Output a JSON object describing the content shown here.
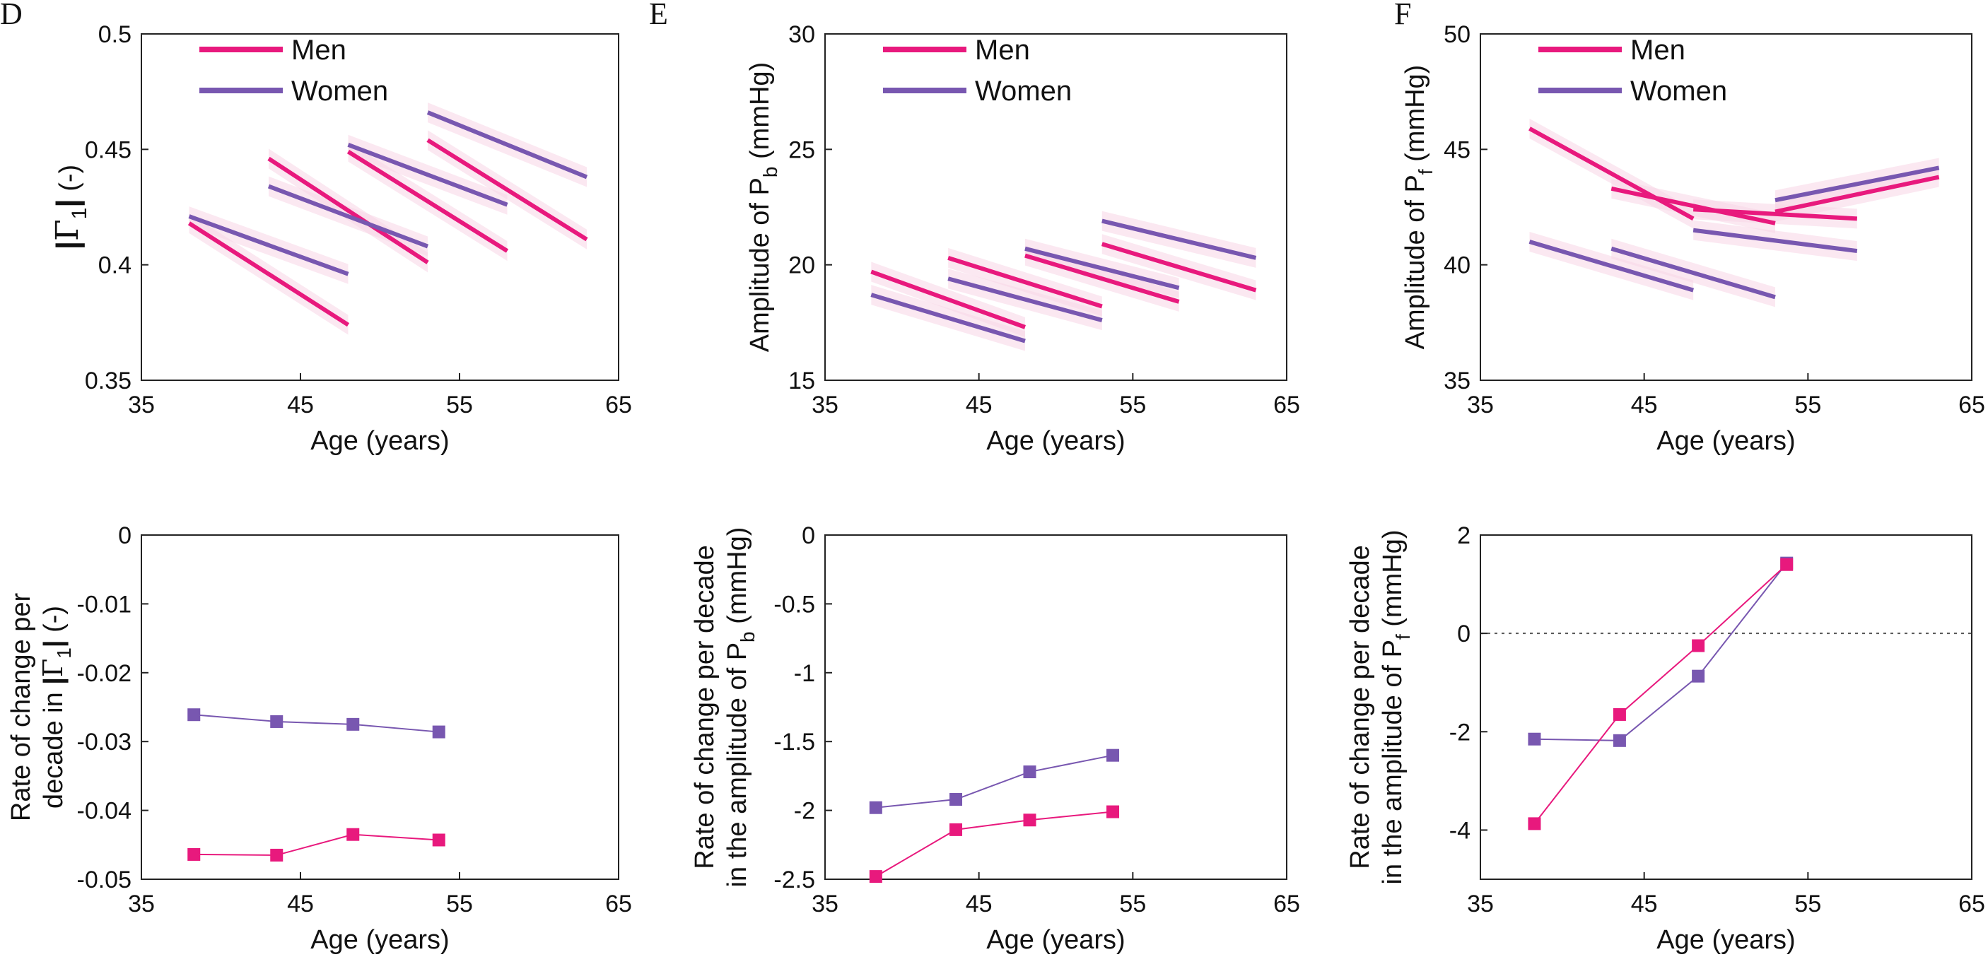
{
  "colors": {
    "men": "#e8197d",
    "women": "#7857b0",
    "band": "#f7d6e6",
    "axis": "#222222",
    "zero": "#555555"
  },
  "chart_data": [
    {
      "id": "D-top",
      "letter": "D",
      "type": "line",
      "xlabel": "Age (years)",
      "ylabel": "",
      "xlim": [
        35,
        65
      ],
      "ylim": [
        0.35,
        0.5
      ],
      "xticks": [
        35,
        45,
        55,
        65
      ],
      "xtick_labels": [
        "35",
        "45",
        "55",
        "65"
      ],
      "yticks": [
        0.35,
        0.4,
        0.45,
        0.5
      ],
      "ytick_labels": [
        "0.35",
        "0.4",
        "0.45",
        "0.5"
      ],
      "legend": [
        "Men",
        "Women"
      ],
      "legend_placement": "top-left",
      "series": [
        {
          "name": "Men",
          "color": "men",
          "segments": [
            [
              [
                38,
                0.418
              ],
              [
                48,
                0.374
              ]
            ],
            [
              [
                43,
                0.446
              ],
              [
                53,
                0.401
              ]
            ],
            [
              [
                48,
                0.449
              ],
              [
                58,
                0.406
              ]
            ],
            [
              [
                53,
                0.454
              ],
              [
                63,
                0.411
              ]
            ]
          ]
        },
        {
          "name": "Women",
          "color": "women",
          "segments": [
            [
              [
                38,
                0.421
              ],
              [
                48,
                0.396
              ]
            ],
            [
              [
                43,
                0.434
              ],
              [
                53,
                0.408
              ]
            ],
            [
              [
                48,
                0.452
              ],
              [
                58,
                0.426
              ]
            ],
            [
              [
                53,
                0.466
              ],
              [
                63,
                0.438
              ]
            ]
          ]
        }
      ]
    },
    {
      "id": "E-top",
      "letter": "E",
      "type": "line",
      "xlabel": "Age (years)",
      "ylabel": "Amplitude of P",
      "ylabel_sub": "b",
      "ylabel_suffix": " (mmHg)",
      "xlim": [
        35,
        65
      ],
      "ylim": [
        15,
        30
      ],
      "xticks": [
        35,
        45,
        55,
        65
      ],
      "xtick_labels": [
        "35",
        "45",
        "55",
        "65"
      ],
      "yticks": [
        15,
        20,
        25,
        30
      ],
      "ytick_labels": [
        "15",
        "20",
        "25",
        "30"
      ],
      "legend": [
        "Men",
        "Women"
      ],
      "legend_placement": "top-left",
      "series": [
        {
          "name": "Men",
          "color": "men",
          "segments": [
            [
              [
                38,
                19.7
              ],
              [
                48,
                17.3
              ]
            ],
            [
              [
                43,
                20.3
              ],
              [
                53,
                18.2
              ]
            ],
            [
              [
                48,
                20.4
              ],
              [
                58,
                18.4
              ]
            ],
            [
              [
                53,
                20.9
              ],
              [
                63,
                18.9
              ]
            ]
          ]
        },
        {
          "name": "Women",
          "color": "women",
          "segments": [
            [
              [
                38,
                18.7
              ],
              [
                48,
                16.7
              ]
            ],
            [
              [
                43,
                19.4
              ],
              [
                53,
                17.6
              ]
            ],
            [
              [
                48,
                20.7
              ],
              [
                58,
                19.0
              ]
            ],
            [
              [
                53,
                21.9
              ],
              [
                63,
                20.3
              ]
            ]
          ]
        }
      ]
    },
    {
      "id": "F-top",
      "letter": "F",
      "type": "line",
      "xlabel": "Age (years)",
      "ylabel": "Amplitude of P",
      "ylabel_sub": "f",
      "ylabel_suffix": " (mmHg)",
      "xlim": [
        35,
        65
      ],
      "ylim": [
        35,
        50
      ],
      "xticks": [
        35,
        45,
        55,
        65
      ],
      "xtick_labels": [
        "35",
        "45",
        "55",
        "65"
      ],
      "yticks": [
        35,
        40,
        45,
        50
      ],
      "ytick_labels": [
        "35",
        "40",
        "45",
        "50"
      ],
      "legend": [
        "Men",
        "Women"
      ],
      "legend_placement": "top-left",
      "series": [
        {
          "name": "Men",
          "color": "men",
          "segments": [
            [
              [
                38,
                45.9
              ],
              [
                48,
                42.0
              ]
            ],
            [
              [
                43,
                43.3
              ],
              [
                53,
                41.8
              ]
            ],
            [
              [
                48,
                42.4
              ],
              [
                58,
                42.0
              ]
            ],
            [
              [
                53,
                42.3
              ],
              [
                63,
                43.8
              ]
            ]
          ]
        },
        {
          "name": "Women",
          "color": "women",
          "segments": [
            [
              [
                38,
                41.0
              ],
              [
                48,
                38.9
              ]
            ],
            [
              [
                43,
                40.7
              ],
              [
                53,
                38.6
              ]
            ],
            [
              [
                48,
                41.5
              ],
              [
                58,
                40.6
              ]
            ],
            [
              [
                53,
                42.8
              ],
              [
                63,
                44.2
              ]
            ]
          ]
        }
      ]
    },
    {
      "id": "D-bottom",
      "type": "line",
      "xlabel": "Age (years)",
      "ylabel_line1": "Rate of change per",
      "ylabel_line2": "decade in ",
      "xlim": [
        35,
        65
      ],
      "ylim": [
        -0.05,
        0
      ],
      "xticks": [
        35,
        45,
        55,
        65
      ],
      "xtick_labels": [
        "35",
        "45",
        "55",
        "65"
      ],
      "yticks": [
        -0.05,
        -0.04,
        -0.03,
        -0.02,
        -0.01,
        0
      ],
      "ytick_labels": [
        "-0.05",
        "-0.04",
        "-0.03",
        "-0.02",
        "-0.01",
        "0"
      ],
      "zero_line": true,
      "series": [
        {
          "name": "Women",
          "color": "women",
          "x": [
            38.3,
            43.5,
            48.3,
            53.7
          ],
          "y": [
            -0.0261,
            -0.0271,
            -0.0275,
            -0.0286
          ]
        },
        {
          "name": "Men",
          "color": "men",
          "x": [
            38.3,
            43.5,
            48.3,
            53.7
          ],
          "y": [
            -0.0464,
            -0.0465,
            -0.0435,
            -0.0443
          ]
        }
      ]
    },
    {
      "id": "E-bottom",
      "type": "line",
      "xlabel": "Age (years)",
      "ylabel_line1": "Rate of change per decade",
      "ylabel_line2": "in the amplitude of P",
      "ylabel_sub": "b",
      "ylabel_suffix": " (mmHg)",
      "xlim": [
        35,
        65
      ],
      "ylim": [
        -2.5,
        0
      ],
      "xticks": [
        35,
        45,
        55,
        65
      ],
      "xtick_labels": [
        "35",
        "45",
        "55",
        "65"
      ],
      "yticks": [
        -2.5,
        -2,
        -1.5,
        -1,
        -0.5,
        0
      ],
      "ytick_labels": [
        "-2.5",
        "-2",
        "-1.5",
        "-1",
        "-0.5",
        "0"
      ],
      "zero_line": true,
      "series": [
        {
          "name": "Women",
          "color": "women",
          "x": [
            38.3,
            43.5,
            48.3,
            53.7
          ],
          "y": [
            -1.98,
            -1.92,
            -1.72,
            -1.6
          ]
        },
        {
          "name": "Men",
          "color": "men",
          "x": [
            38.3,
            43.5,
            48.3,
            53.7
          ],
          "y": [
            -2.48,
            -2.14,
            -2.07,
            -2.01
          ]
        }
      ]
    },
    {
      "id": "F-bottom",
      "type": "line",
      "xlabel": "Age (years)",
      "ylabel_line1": "Rate of change per decade",
      "ylabel_line2": "in the amplitude of P",
      "ylabel_sub": "f",
      "ylabel_suffix": " (mmHg)",
      "xlim": [
        35,
        65
      ],
      "ylim": [
        -5,
        2
      ],
      "xticks": [
        35,
        45,
        55,
        65
      ],
      "xtick_labels": [
        "35",
        "45",
        "55",
        "65"
      ],
      "yticks": [
        -4,
        -2,
        0,
        2
      ],
      "ytick_labels": [
        "-4",
        "-2",
        "0",
        "2"
      ],
      "zero_line": true,
      "series": [
        {
          "name": "Women",
          "color": "women",
          "x": [
            38.3,
            43.5,
            48.3,
            53.7
          ],
          "y": [
            -2.15,
            -2.18,
            -0.87,
            1.43
          ]
        },
        {
          "name": "Men",
          "color": "men",
          "x": [
            38.3,
            43.5,
            48.3,
            53.7
          ],
          "y": [
            -3.87,
            -1.65,
            -0.25,
            1.4
          ]
        }
      ]
    }
  ]
}
